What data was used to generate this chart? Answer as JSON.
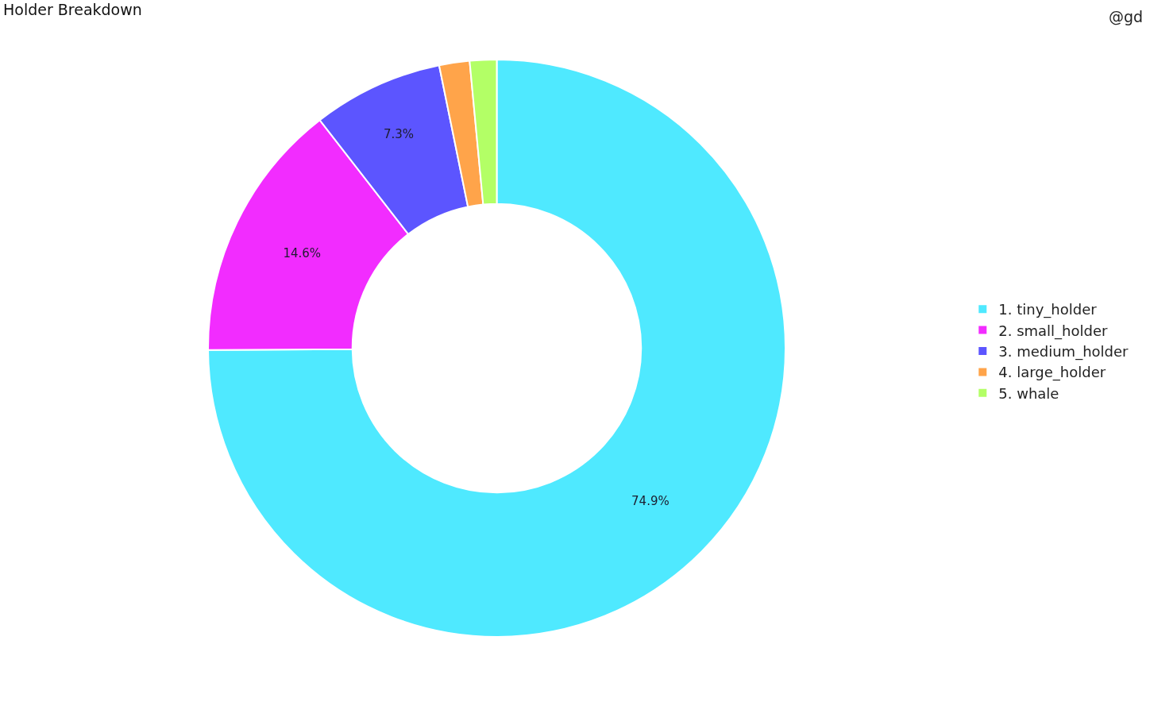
{
  "chart_data": {
    "type": "donut",
    "title": "Holder Breakdown",
    "annotations": [
      "@gd"
    ],
    "categories": [
      "1. tiny_holder",
      "2. small_holder",
      "3. medium_holder",
      "4. large_holder",
      "5. whale"
    ],
    "values": [
      74.9,
      14.6,
      7.3,
      1.7,
      1.5
    ],
    "colors": [
      "#4fe9ff",
      "#f22cff",
      "#5c55ff",
      "#ffa44a",
      "#b3ff66"
    ],
    "value_labels": [
      "74.9%",
      "14.6%",
      "7.3%",
      null,
      null
    ],
    "legend": "right"
  }
}
